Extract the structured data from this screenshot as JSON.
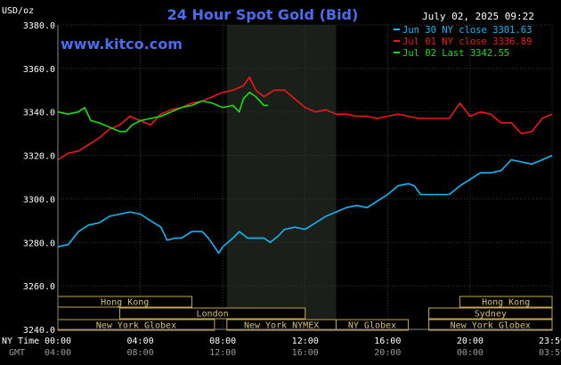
{
  "chart_data": {
    "type": "line",
    "title": "24 Hour Spot Gold (Bid)",
    "watermark": "www.kitco.com",
    "datetime": "July 02, 2025 09:22",
    "y_unit": "USD/oz",
    "ylim": [
      3240,
      3380
    ],
    "y_ticks": [
      "3380.0",
      "3360.0",
      "3340.0",
      "3320.0",
      "3300.0",
      "3280.0",
      "3260.0",
      "3240.0"
    ],
    "x_row_label_ny": "NY Time",
    "x_row_label_gmt": "GMT",
    "x_ticks_ny": [
      "00:00",
      "04:00",
      "08:00",
      "12:00",
      "16:00",
      "20:00",
      "23:59"
    ],
    "x_ticks_gmt": [
      "04:00",
      "08:00",
      "12:00",
      "16:00",
      "20:00",
      "00:00",
      "03:59"
    ],
    "x_tick_hours": [
      0,
      4,
      8,
      12,
      16,
      20,
      23.98
    ],
    "grid": true,
    "shaded_hours": [
      8.2,
      13.5
    ],
    "legend": [
      {
        "text": "Jun 30 NY close 3301.63",
        "color": "#10b8f8"
      },
      {
        "text": "Jul 01 NY close 3336.89",
        "color": "#f01818"
      },
      {
        "text": "Jul 02 Last 3342.55",
        "color": "#18e018"
      }
    ],
    "series": [
      {
        "color": "#10b8f8",
        "points": [
          [
            0,
            3278
          ],
          [
            0.5,
            3279
          ],
          [
            1,
            3285
          ],
          [
            1.5,
            3288
          ],
          [
            2,
            3289
          ],
          [
            2.5,
            3292
          ],
          [
            3,
            3293
          ],
          [
            3.5,
            3294
          ],
          [
            4,
            3293
          ],
          [
            4.5,
            3290
          ],
          [
            5,
            3287
          ],
          [
            5.3,
            3281
          ],
          [
            5.7,
            3282
          ],
          [
            6,
            3282
          ],
          [
            6.5,
            3285
          ],
          [
            7,
            3285
          ],
          [
            7.3,
            3282
          ],
          [
            7.6,
            3278
          ],
          [
            7.8,
            3275
          ],
          [
            8,
            3278
          ],
          [
            8.5,
            3282
          ],
          [
            8.8,
            3285
          ],
          [
            9.2,
            3282
          ],
          [
            9.6,
            3282
          ],
          [
            10,
            3282
          ],
          [
            10.3,
            3280
          ],
          [
            10.7,
            3283
          ],
          [
            11,
            3286
          ],
          [
            11.5,
            3287
          ],
          [
            12,
            3286
          ],
          [
            12.5,
            3289
          ],
          [
            13,
            3292
          ],
          [
            13.5,
            3294
          ],
          [
            14,
            3296
          ],
          [
            14.5,
            3297
          ],
          [
            15,
            3296
          ],
          [
            15.5,
            3299
          ],
          [
            16,
            3302
          ],
          [
            16.5,
            3306
          ],
          [
            17,
            3307
          ],
          [
            17.3,
            3306
          ],
          [
            17.6,
            3302
          ],
          [
            18,
            3302
          ],
          [
            18.5,
            3302
          ],
          [
            19,
            3302
          ],
          [
            19.5,
            3306
          ],
          [
            20,
            3309
          ],
          [
            20.5,
            3312
          ],
          [
            21,
            3312
          ],
          [
            21.5,
            3313
          ],
          [
            22,
            3318
          ],
          [
            22.5,
            3317
          ],
          [
            23,
            3316
          ],
          [
            23.5,
            3318
          ],
          [
            23.98,
            3320
          ]
        ]
      },
      {
        "color": "#f01818",
        "points": [
          [
            0,
            3318
          ],
          [
            0.5,
            3321
          ],
          [
            1,
            3322
          ],
          [
            1.5,
            3325
          ],
          [
            2,
            3328
          ],
          [
            2.5,
            3332
          ],
          [
            3,
            3334
          ],
          [
            3.5,
            3338
          ],
          [
            4,
            3336
          ],
          [
            4.5,
            3334
          ],
          [
            5,
            3339
          ],
          [
            5.5,
            3341
          ],
          [
            6,
            3342
          ],
          [
            6.5,
            3344
          ],
          [
            7,
            3345
          ],
          [
            7.5,
            3347
          ],
          [
            8,
            3349
          ],
          [
            8.5,
            3350
          ],
          [
            9,
            3352
          ],
          [
            9.3,
            3356
          ],
          [
            9.6,
            3350
          ],
          [
            10,
            3347
          ],
          [
            10.5,
            3350
          ],
          [
            11,
            3350
          ],
          [
            11.5,
            3346
          ],
          [
            12,
            3342
          ],
          [
            12.5,
            3340
          ],
          [
            13,
            3341
          ],
          [
            13.5,
            3339
          ],
          [
            14,
            3339
          ],
          [
            14.5,
            3338
          ],
          [
            15,
            3338
          ],
          [
            15.5,
            3337
          ],
          [
            16,
            3338
          ],
          [
            16.5,
            3339
          ],
          [
            17,
            3338
          ],
          [
            17.5,
            3337
          ],
          [
            18,
            3337
          ],
          [
            18.5,
            3337
          ],
          [
            19,
            3337
          ],
          [
            19.5,
            3344
          ],
          [
            20,
            3338
          ],
          [
            20.5,
            3340
          ],
          [
            21,
            3339
          ],
          [
            21.5,
            3335
          ],
          [
            22,
            3335
          ],
          [
            22.5,
            3330
          ],
          [
            23,
            3331
          ],
          [
            23.5,
            3337
          ],
          [
            23.98,
            3339
          ]
        ]
      },
      {
        "color": "#18e018",
        "points": [
          [
            0,
            3340
          ],
          [
            0.5,
            3339
          ],
          [
            1,
            3340
          ],
          [
            1.3,
            3342
          ],
          [
            1.6,
            3336
          ],
          [
            2,
            3335
          ],
          [
            2.5,
            3333
          ],
          [
            3,
            3331
          ],
          [
            3.3,
            3331
          ],
          [
            3.6,
            3334
          ],
          [
            4,
            3336
          ],
          [
            4.5,
            3337
          ],
          [
            5,
            3338
          ],
          [
            5.5,
            3340
          ],
          [
            6,
            3342
          ],
          [
            6.5,
            3343
          ],
          [
            7,
            3345
          ],
          [
            7.5,
            3344
          ],
          [
            8,
            3342
          ],
          [
            8.5,
            3343
          ],
          [
            8.8,
            3340
          ],
          [
            9.0,
            3346
          ],
          [
            9.3,
            3349
          ],
          [
            9.6,
            3347
          ],
          [
            10,
            3343
          ],
          [
            10.2,
            3343
          ]
        ]
      }
    ],
    "sessions": [
      {
        "label": "Hong Kong",
        "row": 0,
        "start": 0,
        "end": 6.5
      },
      {
        "label": "London",
        "row": 1,
        "start": 3,
        "end": 12
      },
      {
        "label": "New York Globex",
        "row": 2,
        "start": 0,
        "end": 7.6
      },
      {
        "label": "New York NYMEX",
        "row": 2,
        "start": 8.2,
        "end": 13.5
      },
      {
        "label": "NY Globex",
        "row": 2,
        "start": 13.5,
        "end": 17
      },
      {
        "label": "Hong Kong",
        "row": 0,
        "start": 19.5,
        "end": 23.98
      },
      {
        "label": "Sydney",
        "row": 1,
        "start": 18,
        "end": 23.98
      },
      {
        "label": "New York Globex",
        "row": 2,
        "start": 18,
        "end": 23.98
      }
    ]
  }
}
